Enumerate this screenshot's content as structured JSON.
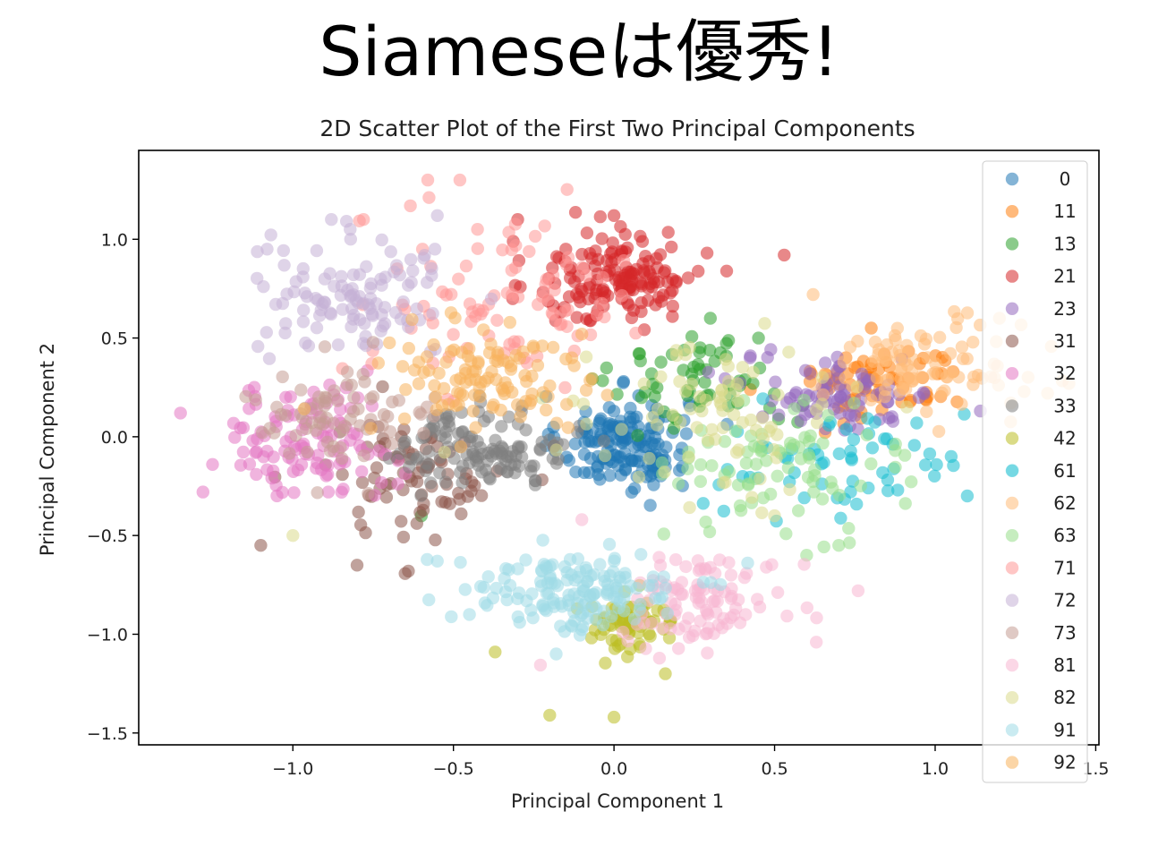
{
  "heading": "Siameseは優秀!",
  "chart_data": {
    "type": "scatter",
    "title": "2D Scatter Plot of the First Two Principal Components",
    "xlabel": "Principal Component 1",
    "ylabel": "Principal Component 2",
    "xlim": [
      -1.48,
      1.51
    ],
    "ylim": [
      -1.56,
      1.45
    ],
    "xticks": [
      -1.0,
      -0.5,
      0.0,
      0.5,
      1.0,
      1.5
    ],
    "xtick_labels": [
      "−1.0",
      "−0.5",
      "0.0",
      "0.5",
      "1.0",
      "1.5"
    ],
    "yticks": [
      -1.5,
      -1.0,
      -0.5,
      0.0,
      0.5,
      1.0
    ],
    "ytick_labels": [
      "−1.5",
      "−1.0",
      "−0.5",
      "0.0",
      "0.5",
      "1.0"
    ],
    "grid": false,
    "legend_position": "right",
    "marker_alpha": 0.55,
    "series": [
      {
        "name": "0",
        "color": "#1f77b4",
        "cluster": {
          "cx": 0.03,
          "cy": -0.03,
          "sx": 0.1,
          "sy": 0.12,
          "n": 150
        },
        "points": [
          [
            0.0,
            0.05
          ],
          [
            0.1,
            -0.05
          ],
          [
            -0.05,
            -0.1
          ],
          [
            0.05,
            0.1
          ],
          [
            0.15,
            -0.12
          ],
          [
            -0.1,
            0.02
          ]
        ]
      },
      {
        "name": "11",
        "color": "#ff7f0e",
        "cluster": {
          "cx": 0.82,
          "cy": 0.28,
          "sx": 0.14,
          "sy": 0.1,
          "n": 70
        },
        "points": [
          [
            0.8,
            0.3
          ],
          [
            0.9,
            0.25
          ],
          [
            0.75,
            0.35
          ]
        ]
      },
      {
        "name": "13",
        "color": "#2ca02c",
        "cluster": {
          "cx": 0.28,
          "cy": 0.28,
          "sx": 0.14,
          "sy": 0.12,
          "n": 60
        },
        "points": [
          [
            0.3,
            0.6
          ],
          [
            0.45,
            0.5
          ],
          [
            -0.6,
            -0.4
          ]
        ]
      },
      {
        "name": "21",
        "color": "#d62728",
        "cluster": {
          "cx": 0.02,
          "cy": 0.8,
          "sx": 0.13,
          "sy": 0.12,
          "n": 150
        },
        "points": [
          [
            0.53,
            0.92
          ],
          [
            -0.3,
            1.1
          ],
          [
            0.0,
            1.12
          ],
          [
            -0.15,
            0.95
          ]
        ]
      },
      {
        "name": "23",
        "color": "#9467bd",
        "cluster": {
          "cx": 0.7,
          "cy": 0.22,
          "sx": 0.15,
          "sy": 0.1,
          "n": 80
        },
        "points": [
          [
            0.7,
            0.3
          ],
          [
            0.65,
            0.2
          ]
        ]
      },
      {
        "name": "31",
        "color": "#8c564b",
        "cluster": {
          "cx": -0.62,
          "cy": -0.2,
          "sx": 0.15,
          "sy": 0.15,
          "n": 80
        },
        "points": [
          [
            -1.1,
            -0.55
          ],
          [
            -0.8,
            -0.65
          ],
          [
            -0.64,
            -0.68
          ]
        ]
      },
      {
        "name": "32",
        "color": "#e377c2",
        "cluster": {
          "cx": -0.95,
          "cy": -0.02,
          "sx": 0.13,
          "sy": 0.14,
          "n": 110
        },
        "points": [
          [
            -1.35,
            0.12
          ],
          [
            -1.25,
            -0.14
          ],
          [
            -1.28,
            -0.28
          ],
          [
            -1.12,
            0.25
          ]
        ]
      },
      {
        "name": "33",
        "color": "#7f7f7f",
        "cluster": {
          "cx": -0.4,
          "cy": -0.05,
          "sx": 0.13,
          "sy": 0.1,
          "n": 120
        },
        "points": [
          [
            -0.35,
            -0.05
          ],
          [
            -0.45,
            0.0
          ]
        ]
      },
      {
        "name": "42",
        "color": "#bcbd22",
        "cluster": {
          "cx": 0.05,
          "cy": -0.95,
          "sx": 0.08,
          "sy": 0.07,
          "n": 70
        },
        "points": [
          [
            -0.2,
            -1.41
          ],
          [
            0.0,
            -1.42
          ],
          [
            -0.37,
            -1.09
          ],
          [
            0.16,
            -1.2
          ]
        ]
      },
      {
        "name": "61",
        "color": "#17becf",
        "cluster": {
          "cx": 0.72,
          "cy": -0.15,
          "sx": 0.2,
          "sy": 0.14,
          "n": 60
        },
        "points": [
          [
            1.1,
            -0.3
          ],
          [
            1.05,
            -0.1
          ]
        ]
      },
      {
        "name": "62",
        "color": "#ffbb78",
        "cluster": {
          "cx": 0.95,
          "cy": 0.35,
          "sx": 0.16,
          "sy": 0.12,
          "n": 90
        },
        "points": [
          [
            1.35,
            0.22
          ],
          [
            1.2,
            0.6
          ],
          [
            0.62,
            0.72
          ]
        ]
      },
      {
        "name": "63",
        "color": "#98df8a",
        "cluster": {
          "cx": 0.55,
          "cy": -0.15,
          "sx": 0.18,
          "sy": 0.15,
          "n": 80
        },
        "points": [
          [
            0.6,
            -0.6
          ],
          [
            0.7,
            -0.55
          ]
        ]
      },
      {
        "name": "71",
        "color": "#ff9896",
        "cluster": {
          "cx": -0.35,
          "cy": 0.72,
          "sx": 0.2,
          "sy": 0.22,
          "n": 90
        },
        "points": [
          [
            -0.58,
            1.3
          ],
          [
            -0.48,
            1.3
          ],
          [
            -0.78,
            1.1
          ],
          [
            -0.5,
            0.18
          ]
        ]
      },
      {
        "name": "72",
        "color": "#c5b0d5",
        "cluster": {
          "cx": -0.8,
          "cy": 0.7,
          "sx": 0.16,
          "sy": 0.15,
          "n": 110
        },
        "points": [
          [
            -1.08,
            0.95
          ],
          [
            -0.55,
            1.12
          ],
          [
            -0.88,
            1.1
          ]
        ]
      },
      {
        "name": "73",
        "color": "#c49c94",
        "cluster": {
          "cx": -0.85,
          "cy": 0.08,
          "sx": 0.15,
          "sy": 0.12,
          "n": 70
        },
        "points": [
          [
            -1.05,
            0.15
          ],
          [
            -0.9,
            0.2
          ]
        ]
      },
      {
        "name": "81",
        "color": "#f7b6d2",
        "cluster": {
          "cx": 0.28,
          "cy": -0.82,
          "sx": 0.13,
          "sy": 0.12,
          "n": 100
        },
        "points": [
          [
            0.63,
            -1.04
          ],
          [
            0.76,
            -0.78
          ],
          [
            -0.1,
            -0.42
          ]
        ]
      },
      {
        "name": "82",
        "color": "#dbdb8d",
        "cluster": {
          "cx": 0.3,
          "cy": 0.08,
          "sx": 0.2,
          "sy": 0.18,
          "n": 80
        },
        "points": [
          [
            -1.0,
            -0.5
          ],
          [
            0.5,
            -0.4
          ]
        ]
      },
      {
        "name": "91",
        "color": "#9edae5",
        "cluster": {
          "cx": -0.12,
          "cy": -0.78,
          "sx": 0.17,
          "sy": 0.1,
          "n": 150
        },
        "points": [
          [
            -0.55,
            -0.63
          ],
          [
            -0.45,
            -0.9
          ],
          [
            -0.18,
            -1.1
          ]
        ]
      },
      {
        "name": "92",
        "color": "#f7b25c",
        "cluster": {
          "cx": -0.42,
          "cy": 0.3,
          "sx": 0.17,
          "sy": 0.16,
          "n": 110
        },
        "points": [
          [
            -0.1,
            0.52
          ],
          [
            -0.25,
            0.45
          ]
        ]
      }
    ]
  }
}
